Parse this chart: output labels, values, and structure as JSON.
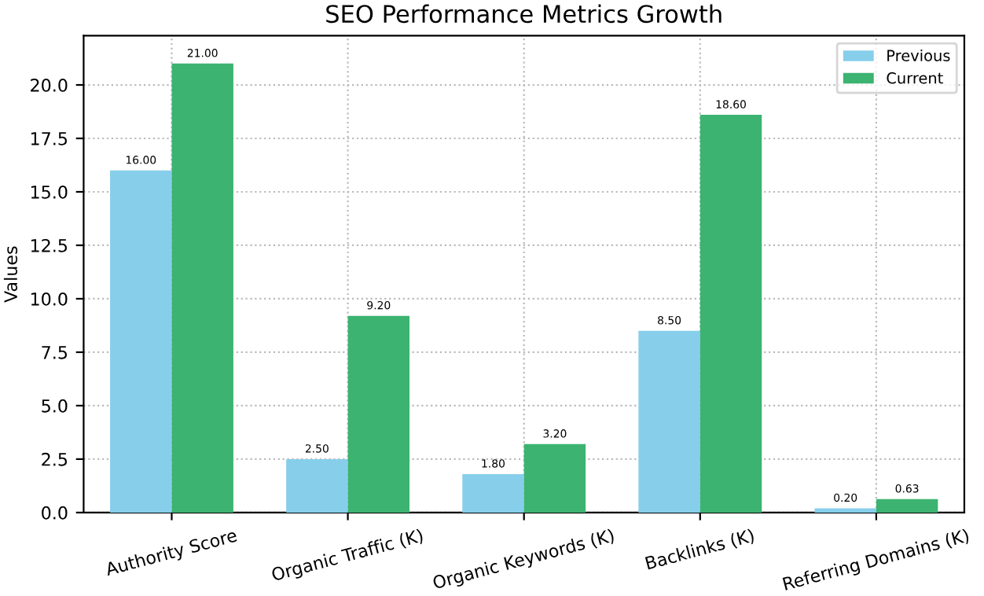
{
  "chart_data": {
    "type": "bar",
    "title": "SEO Performance Metrics Growth",
    "ylabel": "Values",
    "categories": [
      "Authority Score",
      "Organic Traffic (K)",
      "Organic Keywords (K)",
      "Backlinks (K)",
      "Referring Domains (K)"
    ],
    "series": [
      {
        "name": "Previous",
        "color": "#87ceeb",
        "values": [
          16.0,
          2.5,
          1.8,
          8.5,
          0.2
        ],
        "value_labels": [
          "16.00",
          "2.50",
          "1.80",
          "8.50",
          "0.20"
        ]
      },
      {
        "name": "Current",
        "color": "#3cb371",
        "values": [
          21.0,
          9.2,
          3.2,
          18.6,
          0.63
        ],
        "value_labels": [
          "21.00",
          "9.20",
          "3.20",
          "18.60",
          "0.63"
        ]
      }
    ],
    "ylim": [
      0,
      22.3
    ],
    "yticks": [
      {
        "value": 0,
        "label": "0.0"
      },
      {
        "value": 2.5,
        "label": "2.5"
      },
      {
        "value": 5,
        "label": "5.0"
      },
      {
        "value": 7.5,
        "label": "7.5"
      },
      {
        "value": 10,
        "label": "10.0"
      },
      {
        "value": 12.5,
        "label": "12.5"
      },
      {
        "value": 15,
        "label": "15.0"
      },
      {
        "value": 17.5,
        "label": "17.5"
      },
      {
        "value": 20,
        "label": "20.0"
      }
    ],
    "grid": true,
    "legend": "top right"
  }
}
